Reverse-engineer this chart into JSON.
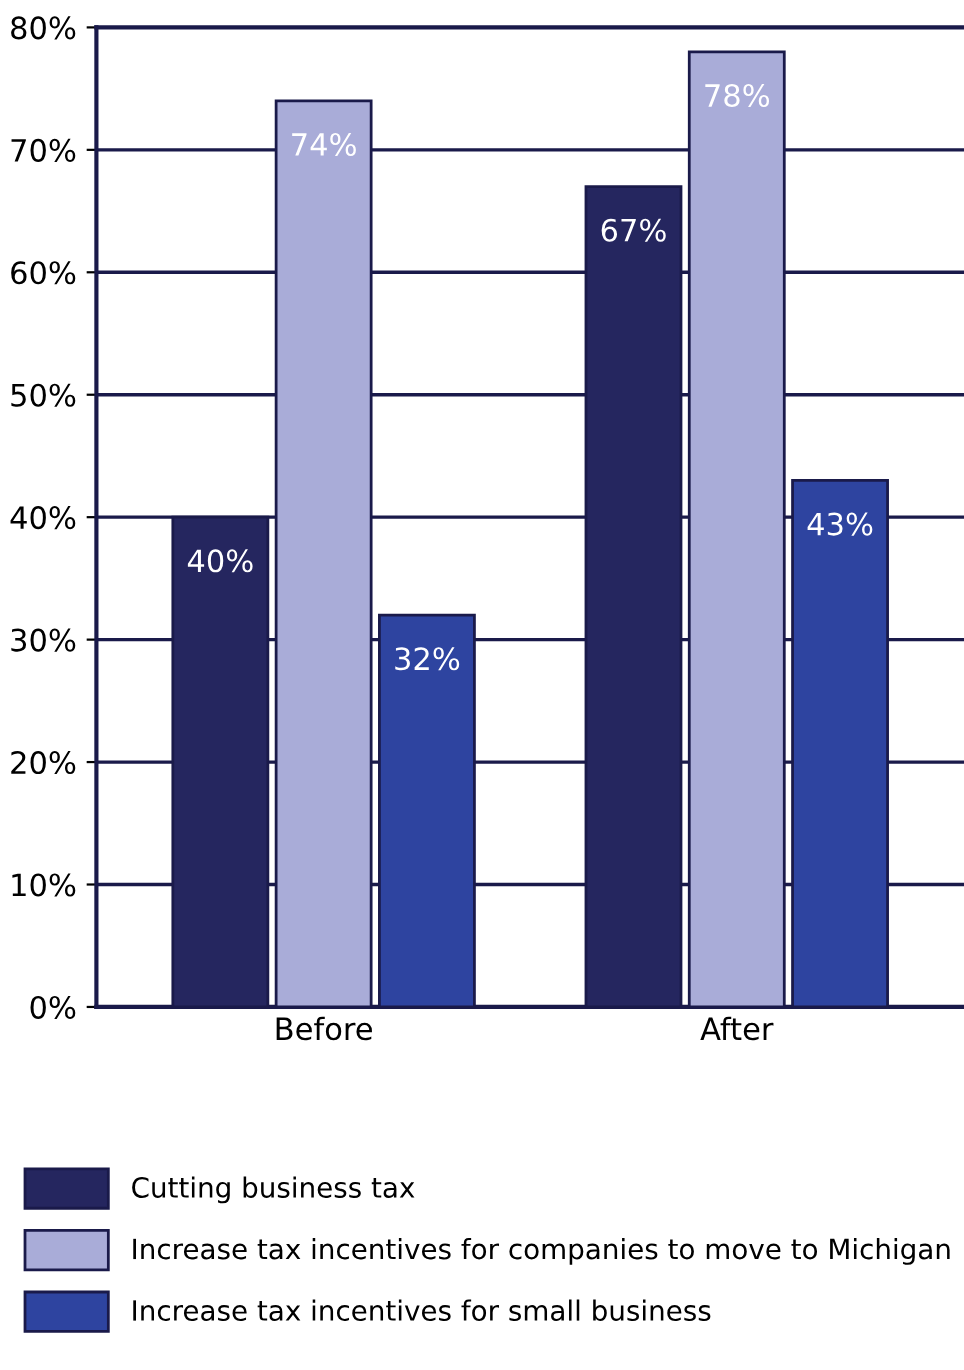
{
  "chart_data": {
    "type": "bar",
    "categories": [
      "Before",
      "After"
    ],
    "series": [
      {
        "name": "Cutting business tax",
        "color": "#25265f",
        "values": [
          40,
          67
        ]
      },
      {
        "name": "Increase tax incentives for companies to move to Michigan",
        "color": "#a9acd8",
        "values": [
          74,
          78
        ]
      },
      {
        "name": "Increase tax incentives for small business",
        "color": "#2e44a0",
        "values": [
          32,
          43
        ]
      }
    ],
    "ylim": [
      0,
      80
    ],
    "yticks": [
      {
        "value": 0,
        "label": "0%"
      },
      {
        "value": 10,
        "label": "10%"
      },
      {
        "value": 20,
        "label": "20%"
      },
      {
        "value": 30,
        "label": "30%"
      },
      {
        "value": 40,
        "label": "40%"
      },
      {
        "value": 50,
        "label": "50%"
      },
      {
        "value": 60,
        "label": "60%"
      },
      {
        "value": 70,
        "label": "70%"
      },
      {
        "value": 80,
        "label": "80%"
      }
    ],
    "value_labels": [
      [
        "40%",
        "67%"
      ],
      [
        "74%",
        "78%"
      ],
      [
        "32%",
        "43%"
      ]
    ],
    "grid": "y",
    "legend": "bottom"
  }
}
